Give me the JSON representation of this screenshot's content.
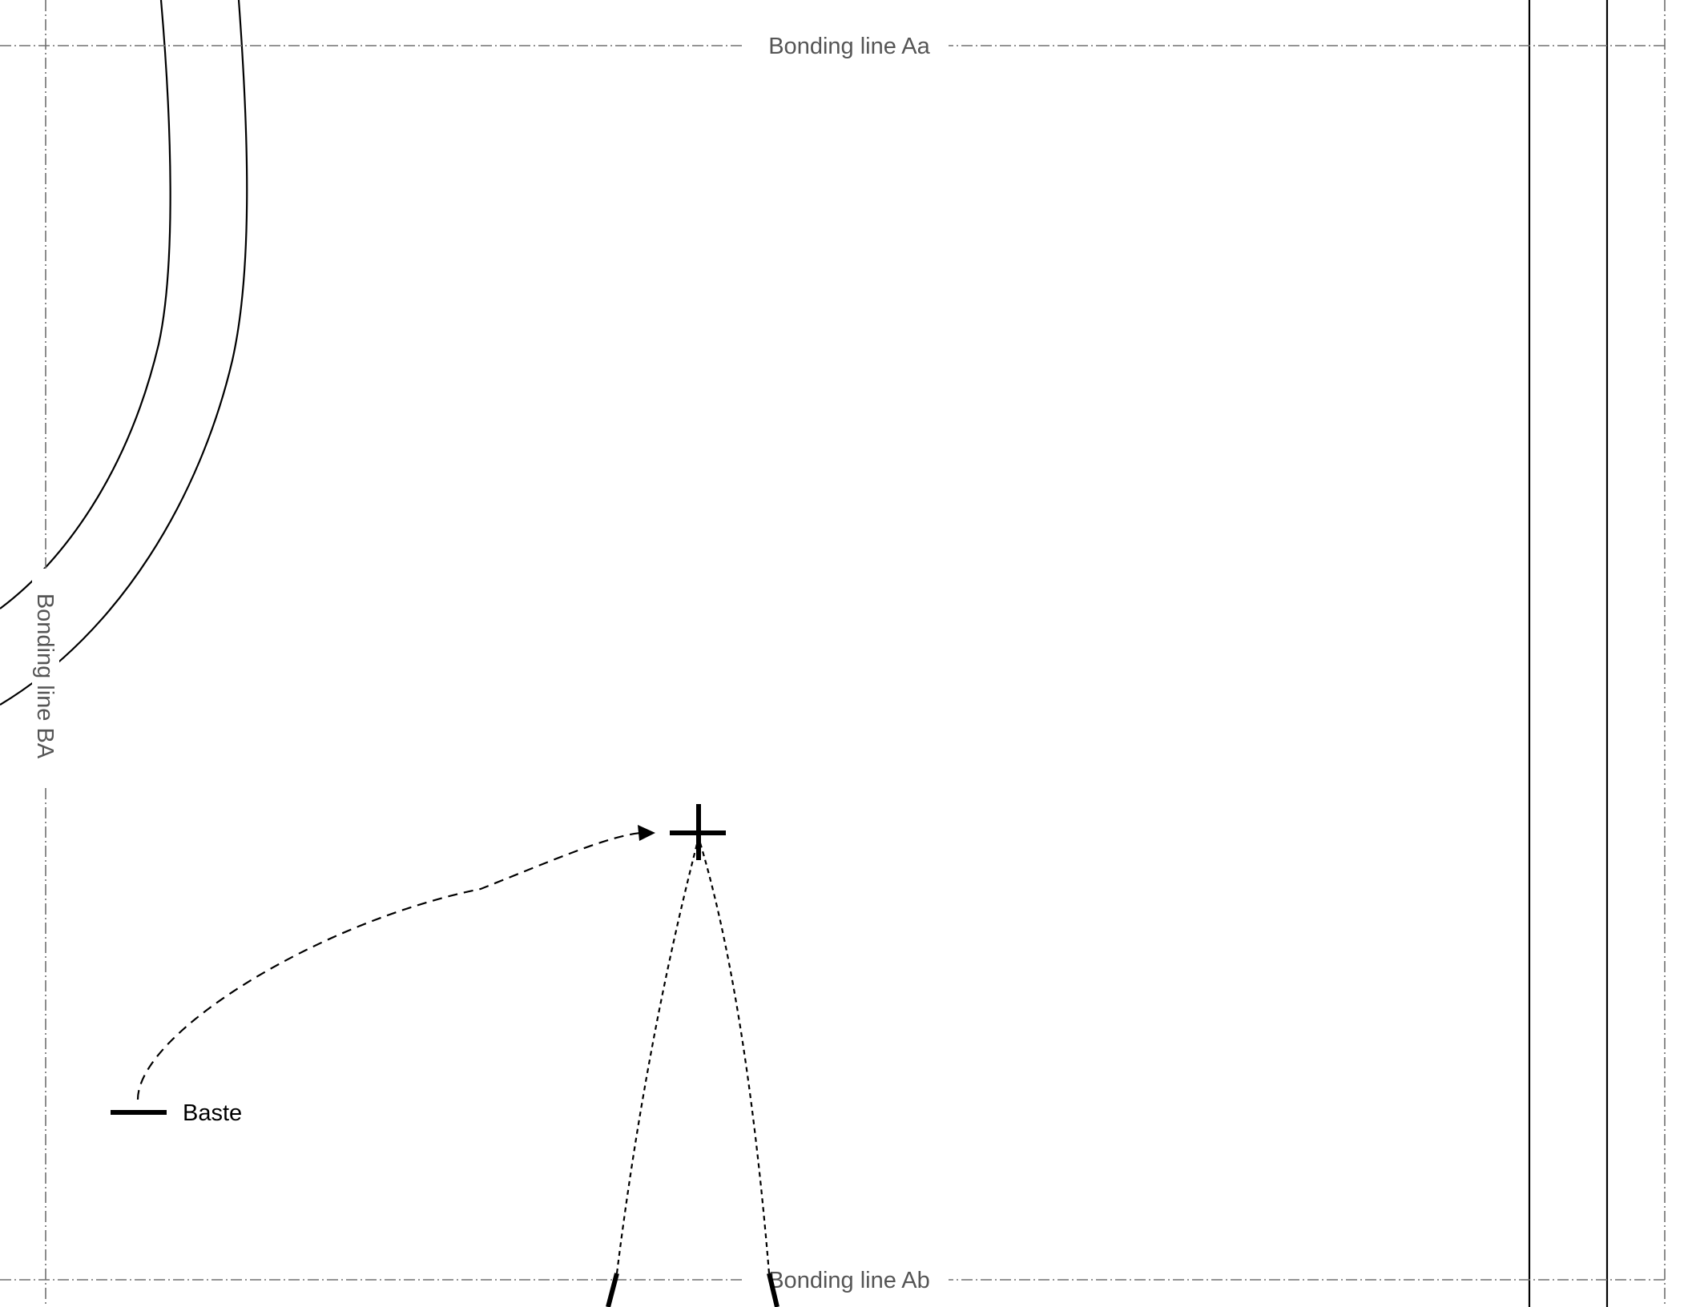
{
  "bonding_lines": {
    "top": "Bonding line Aa",
    "bottom": "Bonding line Ab",
    "left": "Bonding line BA"
  },
  "legend": {
    "baste": "Baste"
  },
  "colors": {
    "guide": "#707070",
    "guide_text": "#555555",
    "ink": "#000000"
  }
}
